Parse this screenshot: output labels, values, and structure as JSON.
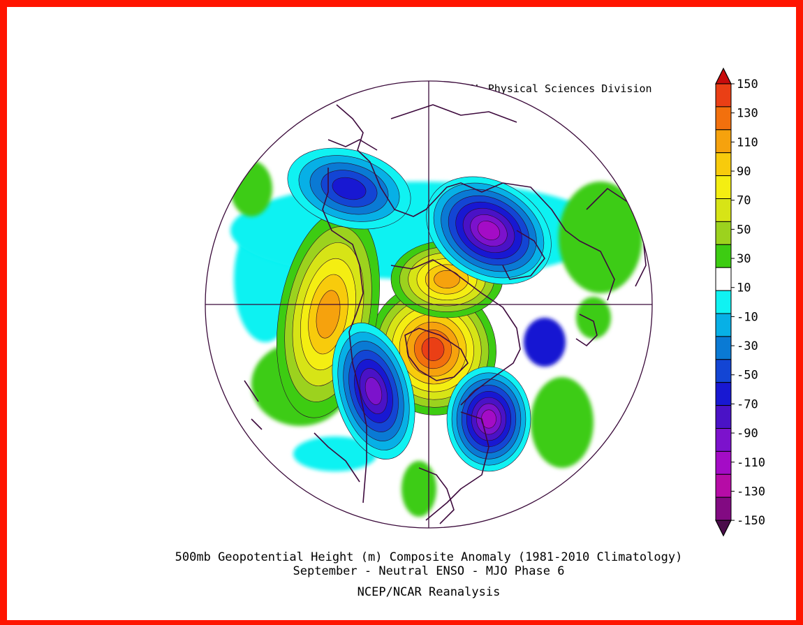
{
  "header": {
    "credit": "NOAA/ESRL Physical Sciences Division"
  },
  "footer": {
    "title_line1": "500mb Geopotential Height (m) Composite Anomaly (1981-2010 Climatology)",
    "title_line2": "September - Neutral ENSO - MJO Phase 6",
    "source": "NCEP/NCAR Reanalysis"
  },
  "colors": {
    "frame": "#ff1500",
    "graticule": "#3a0a3a",
    "coast": "#3d0a3d"
  },
  "map": {
    "projection": "north polar stereographic",
    "variable": "500mb geopotential height anomaly",
    "units": "m",
    "features": [
      {
        "name": "positive-anomaly-north-america",
        "sign": "positive",
        "peak": 130
      },
      {
        "name": "positive-anomaly-eastern-pacific",
        "sign": "positive",
        "peak": 90
      },
      {
        "name": "positive-anomaly-arctic-siberia",
        "sign": "positive",
        "peak": 90
      },
      {
        "name": "negative-anomaly-europe",
        "sign": "negative",
        "peak": -130
      },
      {
        "name": "negative-anomaly-north-pacific",
        "sign": "negative",
        "peak": -110
      },
      {
        "name": "negative-anomaly-north-atlantic",
        "sign": "negative",
        "peak": -130
      },
      {
        "name": "negative-anomaly-asia",
        "sign": "negative",
        "peak": -70
      }
    ]
  },
  "colorbar": {
    "levels": [
      "150",
      "130",
      "110",
      "90",
      "70",
      "50",
      "30",
      "10",
      "-10",
      "-30",
      "-50",
      "-70",
      "-90",
      "-110",
      "-130",
      "-150"
    ],
    "colors": [
      "#c80c0c",
      "#ea3f15",
      "#f2700d",
      "#f6a20d",
      "#f8cb0c",
      "#f4ee12",
      "#d7e416",
      "#9cd21e",
      "#3dcc12",
      "#ffffff",
      "#10f2f2",
      "#07b0e6",
      "#0a7ad4",
      "#1345d4",
      "#1818d2",
      "#4a12c6",
      "#7c12cc",
      "#a40cc6",
      "#b60ca6",
      "#820a82",
      "#4a0c4a"
    ]
  }
}
